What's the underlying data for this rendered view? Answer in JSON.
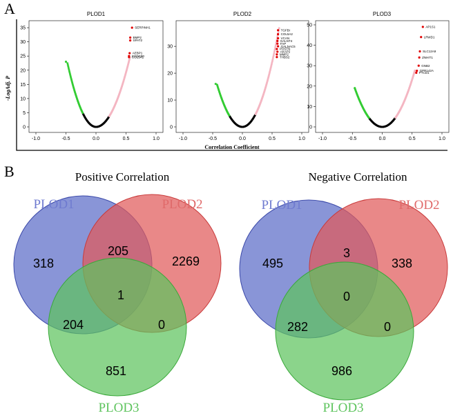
{
  "panel_a": {
    "letter": "A"
  },
  "panel_b": {
    "letter": "B"
  },
  "x_axis_label": "Correlation Coefficient",
  "y_axis_label": "-LogAdj. P",
  "colors": {
    "negative": "#33cc33",
    "neutral": "#000000",
    "positive": "#f4b6c2",
    "top": "#e00000",
    "set1": "#5b6cc7",
    "set2": "#e05a5a",
    "set3": "#5ec45e"
  },
  "chart_data": [
    {
      "type": "scatter",
      "title": "PLOD1",
      "xlabel": "Correlation Coefficient",
      "ylabel": "-LogAdj. P",
      "xlim": [
        -1.0,
        1.0
      ],
      "ylim": [
        0,
        36
      ],
      "x_ticks": [
        "-1.0",
        "-0.5",
        "0.0",
        "0.5",
        "1.0"
      ],
      "y_ticks": [
        "0",
        "5",
        "10",
        "15",
        "20",
        "25",
        "30",
        "35"
      ],
      "curve": {
        "min_x": -0.48,
        "max_x": 0.57,
        "max_y": 25,
        "min_left_x": -0.5,
        "left_y": 23
      },
      "top_genes": [
        {
          "label": "SERPINH1",
          "x": 0.6,
          "y": 35
        },
        {
          "label": "BMP2",
          "x": 0.57,
          "y": 31.5
        },
        {
          "label": "SPAT2",
          "x": 0.57,
          "y": 30.5
        },
        {
          "label": "AEBP1",
          "x": 0.56,
          "y": 26
        },
        {
          "label": "CCDC80",
          "x": 0.55,
          "y": 25
        },
        {
          "label": "COL5A1",
          "x": 0.55,
          "y": 24.6
        }
      ]
    },
    {
      "type": "scatter",
      "title": "PLOD2",
      "xlabel": "Correlation Coefficient",
      "ylabel": "-LogAdj. P",
      "xlim": [
        -1.0,
        1.0
      ],
      "ylim": [
        0,
        38
      ],
      "x_ticks": [
        "-1.0",
        "-0.5",
        "0.0",
        "0.5",
        "1.0"
      ],
      "y_ticks": [
        "0",
        "10",
        "20",
        "30"
      ],
      "curve": {
        "min_x": -0.43,
        "max_x": 0.62,
        "max_y": 37,
        "min_left_x": -0.45,
        "left_y": 16
      },
      "top_genes": [
        {
          "label": "TGFBI",
          "x": 0.6,
          "y": 36
        },
        {
          "label": "COL5A2",
          "x": 0.6,
          "y": 34.5
        },
        {
          "label": "VCAN",
          "x": 0.6,
          "y": 33
        },
        {
          "label": "GALNT4",
          "x": 0.59,
          "y": 32
        },
        {
          "label": "FAP",
          "x": 0.59,
          "y": 31
        },
        {
          "label": "GALNAC5",
          "x": 0.6,
          "y": 30
        },
        {
          "label": "POSTN",
          "x": 0.58,
          "y": 29
        },
        {
          "label": "AKAP2",
          "x": 0.59,
          "y": 28
        },
        {
          "label": "MMP2",
          "x": 0.58,
          "y": 27
        },
        {
          "label": "THBS2",
          "x": 0.58,
          "y": 26
        }
      ]
    },
    {
      "type": "scatter",
      "title": "PLOD3",
      "xlabel": "Correlation Coefficient",
      "ylabel": "-LogAdj. P",
      "xlim": [
        -1.0,
        1.0
      ],
      "ylim": [
        0,
        50
      ],
      "x_ticks": [
        "-1.0",
        "-0.5",
        "0.0",
        "0.5",
        "1.0"
      ],
      "y_ticks": [
        "0",
        "10",
        "20",
        "30",
        "40",
        "50"
      ],
      "curve": {
        "min_x": -0.46,
        "max_x": 0.55,
        "max_y": 28,
        "min_left_x": -0.46,
        "left_y": 19
      },
      "top_genes": [
        {
          "label": "AP1S1",
          "x": 0.68,
          "y": 49
        },
        {
          "label": "LRWD1",
          "x": 0.65,
          "y": 44
        },
        {
          "label": "SLC12A9",
          "x": 0.63,
          "y": 37
        },
        {
          "label": "ZNHIT1",
          "x": 0.62,
          "y": 34
        },
        {
          "label": "GNB2",
          "x": 0.61,
          "y": 30
        },
        {
          "label": "GPR142A",
          "x": 0.58,
          "y": 27.5
        },
        {
          "label": "PTCD1",
          "x": 0.57,
          "y": 26.5
        }
      ]
    }
  ],
  "venns": [
    {
      "title": "Positive Correlation",
      "sets": [
        "PLOD1",
        "PLOD2",
        "PLOD3"
      ],
      "counts": {
        "only1": "318",
        "only2": "2269",
        "only3": "851",
        "r12": "205",
        "r13": "204",
        "r23": "0",
        "r123": "1"
      }
    },
    {
      "title": "Negative Correlation",
      "sets": [
        "PLOD1",
        "PLOD2",
        "PLOD3"
      ],
      "counts": {
        "only1": "495",
        "only2": "338",
        "only3": "986",
        "r12": "3",
        "r13": "282",
        "r23": "0",
        "r123": "0"
      }
    }
  ]
}
